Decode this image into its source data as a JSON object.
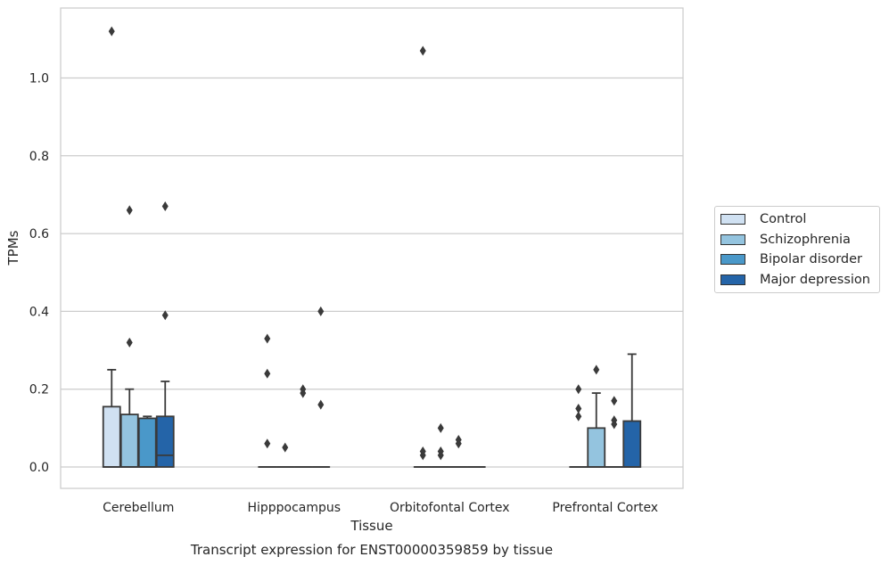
{
  "chart_data": {
    "type": "box",
    "title": "",
    "caption": "Transcript expression for ENST00000359859 by tissue",
    "xlabel": "Tissue",
    "ylabel": "TPMs",
    "ylim": [
      -0.055,
      1.18
    ],
    "yticks": [
      0.0,
      0.2,
      0.4,
      0.6,
      0.8,
      1.0
    ],
    "ytick_labels": [
      "0.0",
      "0.2",
      "0.4",
      "0.6",
      "0.8",
      "1.0"
    ],
    "grid": "horizontal",
    "legend_placement": "right",
    "categories": [
      "Cerebellum",
      "Hipppocampus",
      "Orbitofontal Cortex",
      "Prefrontal Cortex"
    ],
    "series": [
      {
        "name": "Control",
        "color": "#d0e1f2",
        "boxes": [
          {
            "q1": 0.0,
            "median": 0.0,
            "q3": 0.155,
            "whisker_low": 0.0,
            "whisker_high": 0.25,
            "outliers": [
              1.12
            ]
          },
          {
            "q1": 0.0,
            "median": 0.0,
            "q3": 0.0,
            "whisker_low": 0.0,
            "whisker_high": 0.0,
            "outliers": [
              0.33,
              0.24,
              0.06
            ]
          },
          {
            "q1": 0.0,
            "median": 0.0,
            "q3": 0.0,
            "whisker_low": 0.0,
            "whisker_high": 0.0,
            "outliers": [
              1.07,
              0.04,
              0.03
            ]
          },
          {
            "q1": 0.0,
            "median": 0.0,
            "q3": 0.0,
            "whisker_low": 0.0,
            "whisker_high": 0.0,
            "outliers": [
              0.2,
              0.15,
              0.13
            ]
          }
        ]
      },
      {
        "name": "Schizophrenia",
        "color": "#94c4df",
        "boxes": [
          {
            "q1": 0.0,
            "median": 0.0,
            "q3": 0.135,
            "whisker_low": 0.0,
            "whisker_high": 0.2,
            "outliers": [
              0.66,
              0.32
            ]
          },
          {
            "q1": 0.0,
            "median": 0.0,
            "q3": 0.0,
            "whisker_low": 0.0,
            "whisker_high": 0.0,
            "outliers": [
              0.05
            ]
          },
          {
            "q1": 0.0,
            "median": 0.0,
            "q3": 0.0,
            "whisker_low": 0.0,
            "whisker_high": 0.0,
            "outliers": [
              0.1,
              0.04,
              0.03
            ]
          },
          {
            "q1": 0.0,
            "median": 0.0,
            "q3": 0.1,
            "whisker_low": 0.0,
            "whisker_high": 0.19,
            "outliers": [
              0.25
            ]
          }
        ]
      },
      {
        "name": "Bipolar disorder",
        "color": "#4a98c9",
        "boxes": [
          {
            "q1": 0.0,
            "median": 0.0,
            "q3": 0.125,
            "whisker_low": 0.0,
            "whisker_high": 0.13,
            "outliers": []
          },
          {
            "q1": 0.0,
            "median": 0.0,
            "q3": 0.0,
            "whisker_low": 0.0,
            "whisker_high": 0.0,
            "outliers": [
              0.2,
              0.19
            ]
          },
          {
            "q1": 0.0,
            "median": 0.0,
            "q3": 0.0,
            "whisker_low": 0.0,
            "whisker_high": 0.0,
            "outliers": [
              0.07,
              0.06
            ]
          },
          {
            "q1": 0.0,
            "median": 0.0,
            "q3": 0.0,
            "whisker_low": 0.0,
            "whisker_high": 0.0,
            "outliers": [
              0.17,
              0.12,
              0.11
            ]
          }
        ]
      },
      {
        "name": "Major depression",
        "color": "#2464a8",
        "boxes": [
          {
            "q1": 0.0,
            "median": 0.03,
            "q3": 0.13,
            "whisker_low": 0.0,
            "whisker_high": 0.22,
            "outliers": [
              0.67,
              0.39
            ]
          },
          {
            "q1": 0.0,
            "median": 0.0,
            "q3": 0.0,
            "whisker_low": 0.0,
            "whisker_high": 0.0,
            "outliers": [
              0.4,
              0.16
            ]
          },
          {
            "q1": 0.0,
            "median": 0.0,
            "q3": 0.0,
            "whisker_low": 0.0,
            "whisker_high": 0.0,
            "outliers": []
          },
          {
            "q1": 0.0,
            "median": 0.0,
            "q3": 0.118,
            "whisker_low": 0.0,
            "whisker_high": 0.29,
            "outliers": []
          }
        ]
      }
    ]
  }
}
